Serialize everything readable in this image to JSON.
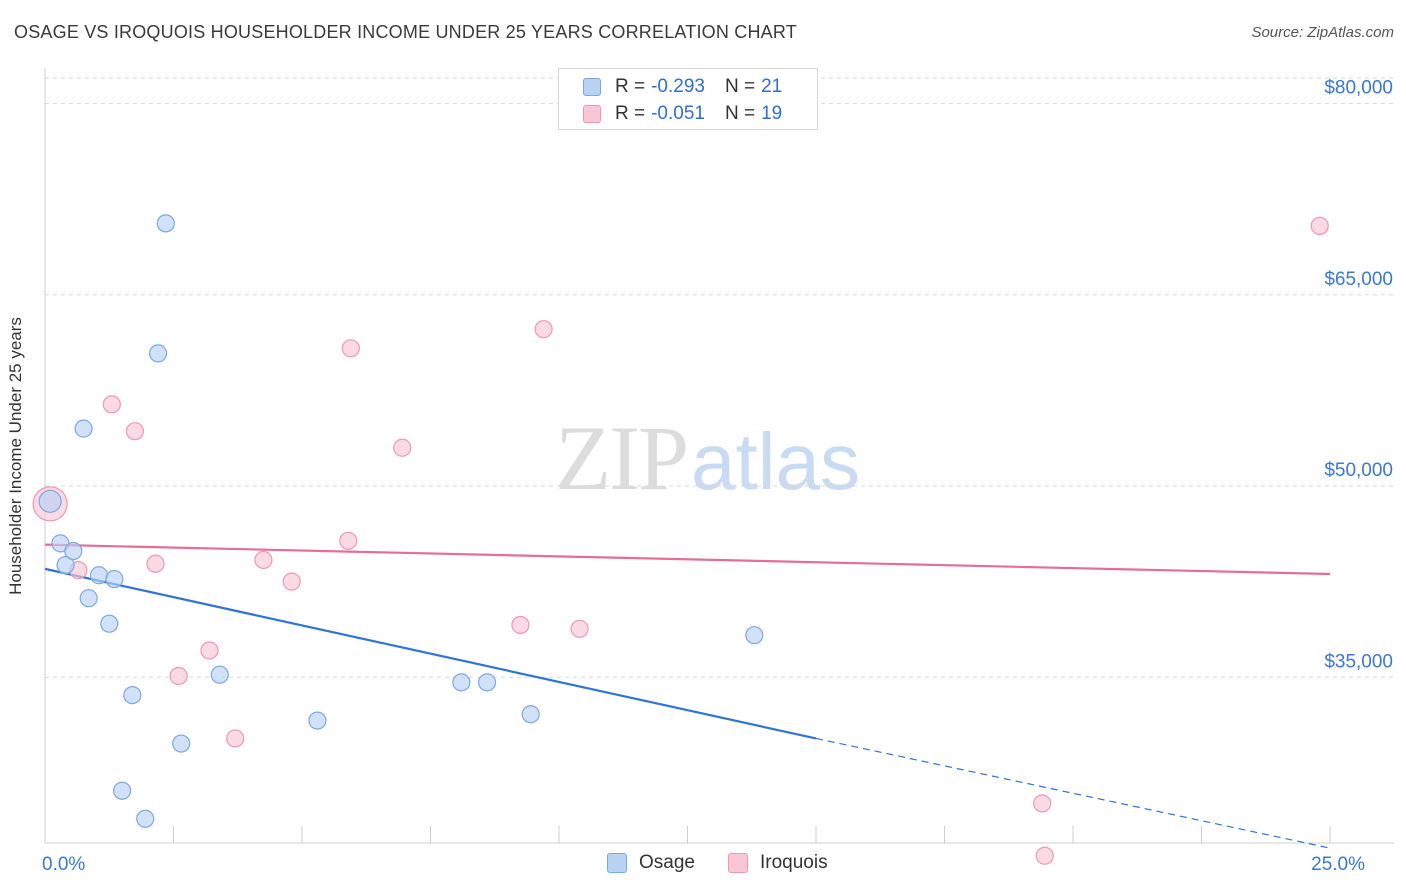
{
  "header": {
    "title": "OSAGE VS IROQUOIS HOUSEHOLDER INCOME UNDER 25 YEARS CORRELATION CHART",
    "source": "Source: ZipAtlas.com"
  },
  "watermark": {
    "part1": "ZIP",
    "part2": "atlas"
  },
  "legend": {
    "series": [
      {
        "r_label": "R =",
        "r_value": "-0.293",
        "n_label": "N =",
        "n_value": "21"
      },
      {
        "r_label": "R =",
        "r_value": "-0.051",
        "n_label": "N =",
        "n_value": "19"
      }
    ]
  },
  "colors": {
    "osage_fill": "#b9d3f5",
    "osage_stroke": "#7aa8e6",
    "osage_line": "#2f74d6",
    "iroquois_fill": "#f9c6d5",
    "iroquois_stroke": "#ee98b3",
    "iroquois_line": "#e46e96",
    "tick_label": "#3a78d4",
    "grid": "#d9d9d9"
  },
  "chart_data": {
    "type": "scatter",
    "title": "OSAGE VS IROQUOIS HOUSEHOLDER INCOME UNDER 25 YEARS CORRELATION CHART",
    "xlabel": "",
    "ylabel": "Householder Income Under 25 years",
    "xlim": [
      0,
      25
    ],
    "ylim": [
      22000,
      82000
    ],
    "x_tick_labels": [
      {
        "value": 0,
        "label": "0.0%"
      },
      {
        "value": 25,
        "label": "25.0%"
      }
    ],
    "y_ticks": [
      {
        "value": 35000,
        "label": "$35,000"
      },
      {
        "value": 50000,
        "label": "$50,000"
      },
      {
        "value": 65000,
        "label": "$65,000"
      },
      {
        "value": 80000,
        "label": "$80,000"
      }
    ],
    "x_minor_ticks": [
      2.5,
      5,
      7.5,
      10,
      12.5,
      15,
      17.5,
      20,
      22.5,
      25
    ],
    "grid": true,
    "legend_position": "top-center",
    "series": [
      {
        "name": "Osage",
        "points": [
          [
            0.1,
            48800
          ],
          [
            0.3,
            45500
          ],
          [
            0.4,
            43800
          ],
          [
            0.55,
            44900
          ],
          [
            0.75,
            54500
          ],
          [
            0.85,
            41200
          ],
          [
            1.05,
            43000
          ],
          [
            1.25,
            39200
          ],
          [
            1.35,
            42700
          ],
          [
            1.5,
            26100
          ],
          [
            1.7,
            33600
          ],
          [
            1.95,
            23900
          ],
          [
            2.2,
            60400
          ],
          [
            2.35,
            70600
          ],
          [
            2.65,
            29800
          ],
          [
            3.4,
            35200
          ],
          [
            5.3,
            31600
          ],
          [
            8.1,
            34600
          ],
          [
            8.6,
            34600
          ],
          [
            9.45,
            32100
          ],
          [
            13.8,
            38300
          ]
        ],
        "trend": {
          "x0": 0,
          "y0": 43500,
          "x1": 15,
          "y1": 30200,
          "dashed_to_x": 25,
          "dashed_to_y": 21600
        }
      },
      {
        "name": "Iroquois",
        "points": [
          [
            0.1,
            48600
          ],
          [
            0.65,
            43400
          ],
          [
            1.3,
            56400
          ],
          [
            1.75,
            54300
          ],
          [
            2.15,
            43900
          ],
          [
            2.6,
            35100
          ],
          [
            3.2,
            37100
          ],
          [
            3.7,
            30200
          ],
          [
            4.25,
            44200
          ],
          [
            4.8,
            42500
          ],
          [
            5.9,
            45700
          ],
          [
            5.95,
            60800
          ],
          [
            6.95,
            53000
          ],
          [
            9.25,
            39100
          ],
          [
            9.7,
            62300
          ],
          [
            10.4,
            38800
          ],
          [
            19.4,
            25100
          ],
          [
            19.45,
            21000
          ],
          [
            24.8,
            70400
          ]
        ],
        "trend": {
          "x0": 0,
          "y0": 45400,
          "x1": 25,
          "y1": 43100
        }
      }
    ]
  }
}
